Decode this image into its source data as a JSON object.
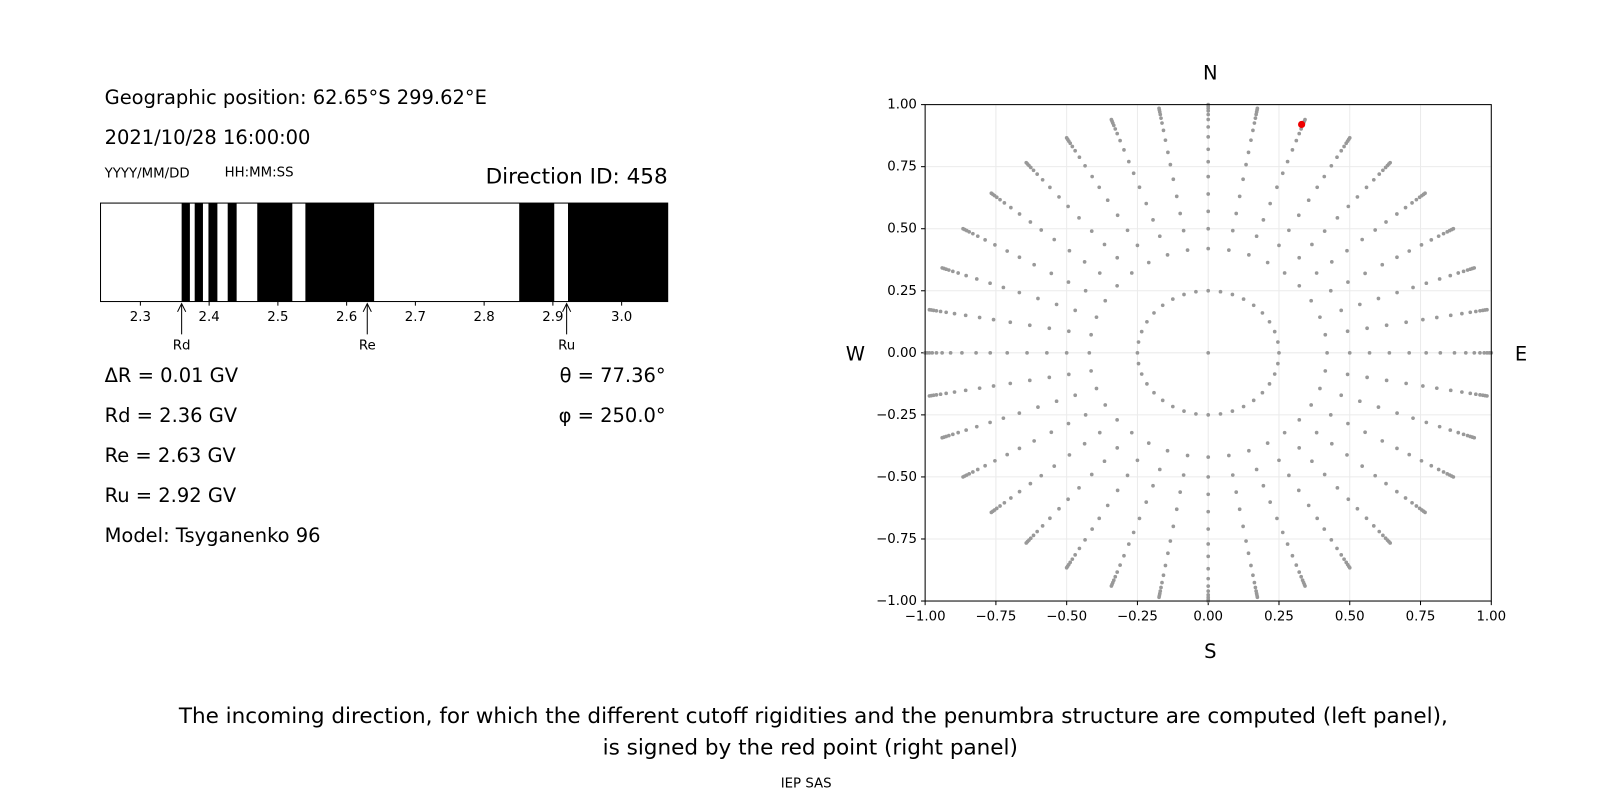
{
  "header": {
    "position": "Geographic position: 62.65°S 299.62°E",
    "datetime": "2021/10/28 16:00:00",
    "date_format": "YYYY/MM/DD",
    "time_format": "HH:MM:SS",
    "direction": "Direction ID: 458"
  },
  "penumbra": {
    "xlim": [
      2.242,
      3.067
    ],
    "xticks": [
      2.3,
      2.4,
      2.5,
      2.6,
      2.7,
      2.8,
      2.9,
      {
        "value": 3,
        "label": "3.0"
      }
    ],
    "bands": [
      [
        2.36,
        2.372
      ],
      [
        2.379,
        2.391
      ],
      [
        2.399,
        2.412
      ],
      [
        2.427,
        2.44
      ],
      [
        2.47,
        2.521
      ],
      [
        2.54,
        2.64
      ],
      [
        2.851,
        2.902
      ],
      [
        2.922,
        3.067
      ]
    ],
    "markers": [
      {
        "label": "Rd",
        "value": 2.36
      },
      {
        "label": "Re",
        "value": 2.63
      },
      {
        "label": "Ru",
        "value": 2.92
      }
    ]
  },
  "results": [
    "ΔR = 0.01 GV",
    "Rd = 2.36 GV",
    "Re = 2.63 GV",
    "Ru = 2.92 GV",
    "Model: Tsyganenko 96"
  ],
  "angles": [
    "θ = 77.36°",
    "φ = 250.0°"
  ],
  "chart_data": {
    "type": "scatter",
    "color": "#999999",
    "xlim": [
      -1,
      1
    ],
    "ylim": [
      -1,
      1
    ],
    "xticks": [
      {
        "value": -1,
        "label": "−1.00"
      },
      {
        "value": -0.75,
        "label": "−0.75"
      },
      {
        "value": -0.5,
        "label": "−0.50"
      },
      {
        "value": -0.25,
        "label": "−0.25"
      },
      {
        "value": 0,
        "label": "0.00"
      },
      {
        "value": 0.25,
        "label": "0.25"
      },
      {
        "value": 0.5,
        "label": "0.50"
      },
      {
        "value": 0.75,
        "label": "0.75"
      },
      {
        "value": 1,
        "label": "1.00"
      }
    ],
    "yticks": [
      {
        "value": -1,
        "label": "−1.00"
      },
      {
        "value": -0.75,
        "label": "−0.75"
      },
      {
        "value": -0.5,
        "label": "−0.50"
      },
      {
        "value": -0.25,
        "label": "−0.25"
      },
      {
        "value": 0,
        "label": "0.00"
      },
      {
        "value": 0.25,
        "label": "0.25"
      },
      {
        "value": 0.5,
        "label": "0.50"
      },
      {
        "value": 0.75,
        "label": "0.75"
      },
      {
        "value": 1,
        "label": "1.00"
      }
    ],
    "grid": true,
    "center": [
      0,
      0
    ],
    "rays": {
      "azimuths": [
        0,
        10,
        20,
        30,
        40,
        50,
        60,
        70,
        80,
        90,
        100,
        110,
        120,
        130,
        140,
        150,
        160,
        170,
        180,
        190,
        200,
        210,
        220,
        230,
        240,
        250,
        260,
        270,
        280,
        290,
        300,
        310,
        320,
        330,
        340,
        350
      ],
      "r": [
        0.25,
        0.42,
        0.5,
        0.57,
        0.64,
        0.71,
        0.77,
        0.82,
        0.87,
        0.91,
        0.94,
        0.96,
        0.975,
        0.985,
        0.993,
        1.0
      ]
    },
    "highlight": {
      "x": 0.33,
      "y": 0.92,
      "color": "#ee0000"
    },
    "compass": {
      "north": "N",
      "south": "S",
      "west": "W",
      "east": "E"
    }
  },
  "caption": [
    "The incoming direction, for which the different cutoff rigidities and the penumbra structure are computed (left panel),",
    "is signed by the red point (right panel)"
  ],
  "footer": "IEP SAS"
}
